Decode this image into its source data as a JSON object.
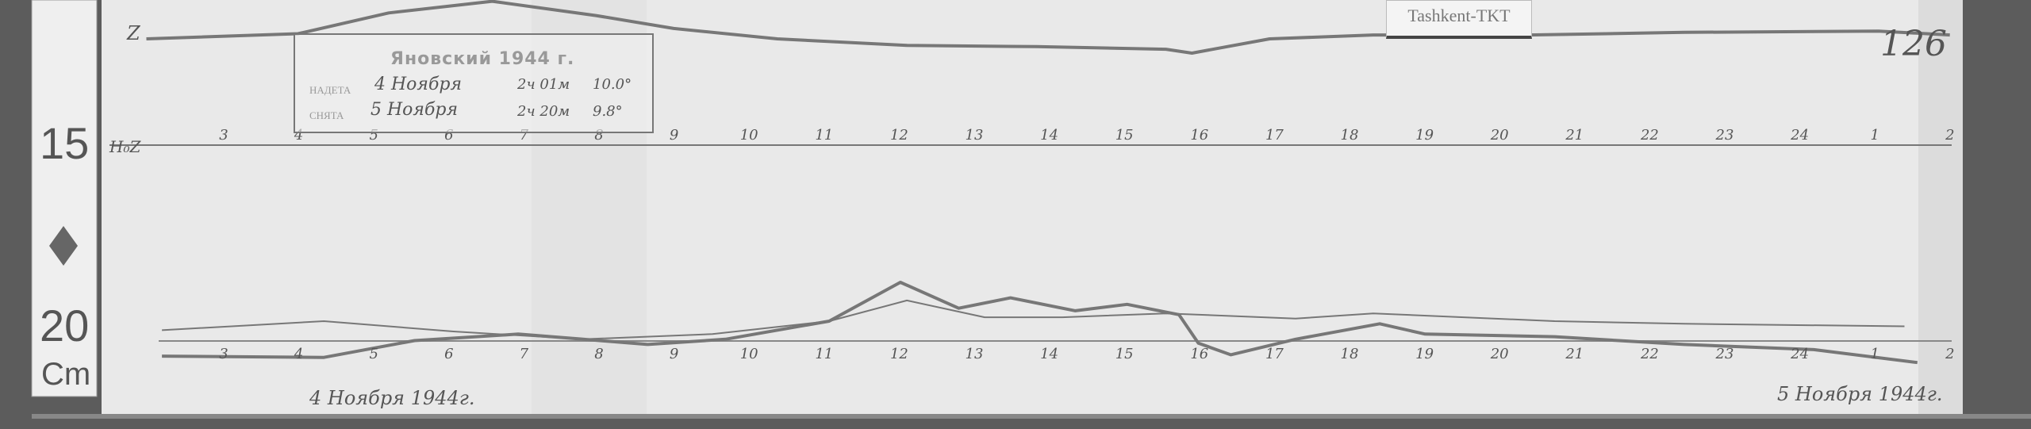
{
  "label_tag": "Tashkent-TKT",
  "sheet_number": "126",
  "trace_label_top": "Z",
  "baseline_label": "H₀Z",
  "ruler": {
    "marks": [
      "15",
      "20"
    ],
    "unit": "Cm"
  },
  "stamp": {
    "title": "Яновский 1944 г.",
    "row1": {
      "label": "НАДЕТА",
      "date": "4 Ноября",
      "time": "2ч 01м",
      "temp": "10.0°"
    },
    "row2": {
      "label": "СНЯТА",
      "date": "5 Ноября",
      "time": "2ч 20м",
      "temp": "9.8°"
    }
  },
  "hours": [
    "3",
    "4",
    "5",
    "6",
    "7",
    "8",
    "9",
    "10",
    "11",
    "12",
    "13",
    "14",
    "15",
    "16",
    "17",
    "18",
    "19",
    "20",
    "21",
    "22",
    "23",
    "24",
    "1",
    "2"
  ],
  "date_left": "4 Ноября 1944г.",
  "date_right": "5 Ноября 1944г.",
  "colors": {
    "paper": "#e9e9e9",
    "trace": "#777777",
    "background": "#5f5f5f"
  }
}
